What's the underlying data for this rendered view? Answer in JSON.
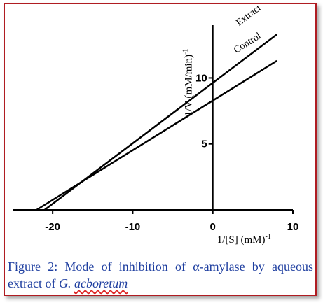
{
  "chart_data": {
    "type": "line",
    "title": "",
    "xlabel": "1/[S] (mM)",
    "xlabel_sup": "-1",
    "ylabel": "1/V (mM/min)",
    "ylabel_sup": "-1",
    "xlim": [
      -25,
      10
    ],
    "ylim": [
      0,
      14
    ],
    "x_ticks": [
      -20,
      -10,
      0,
      10
    ],
    "y_ticks": [
      5,
      10
    ],
    "grid": false,
    "series": [
      {
        "name": "Extract",
        "x": [
          -21.0,
          8.0
        ],
        "y": [
          0,
          13.3
        ]
      },
      {
        "name": "Control",
        "x": [
          -22.0,
          8.0
        ],
        "y": [
          0,
          11.3
        ]
      }
    ]
  },
  "colors": {
    "frame_border": "#b01c22",
    "caption_text": "#1f3fa0",
    "lines": "#000000"
  },
  "caption": {
    "prefix": "Figure 2: Mode of inhibition of α-amylase by aqueous extract of ",
    "genus": "G.",
    "species": "acboretum"
  }
}
